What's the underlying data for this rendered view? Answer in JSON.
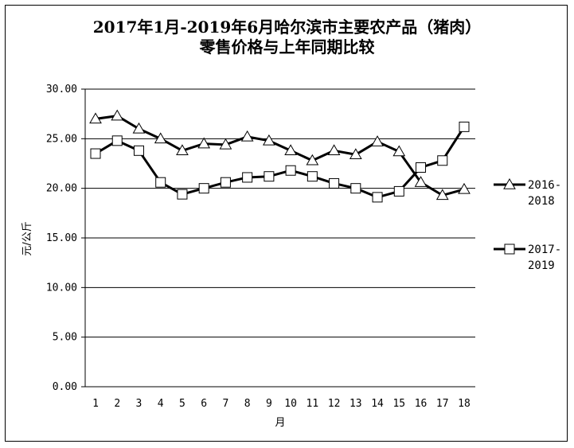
{
  "chart_data": {
    "type": "line",
    "title_line1": "2017年1月-2019年6月哈尔滨市主要农产品（猪肉）",
    "title_line2": "零售价格与上年同期比较",
    "xlabel": "月",
    "ylabel": "元/公斤",
    "categories": [
      "1",
      "2",
      "3",
      "4",
      "5",
      "6",
      "7",
      "8",
      "9",
      "10",
      "11",
      "12",
      "13",
      "14",
      "15",
      "16",
      "17",
      "18"
    ],
    "ylim": [
      0,
      30
    ],
    "yticks": [
      "0.00",
      "5.00",
      "10.00",
      "15.00",
      "20.00",
      "25.00",
      "30.00"
    ],
    "grid": true,
    "legend_position": "right",
    "series": [
      {
        "name": "2016-2018",
        "name_line1": "2016-",
        "name_line2": "2018",
        "marker": "triangle",
        "values": [
          27.0,
          27.3,
          26.0,
          25.0,
          23.8,
          24.5,
          24.4,
          25.2,
          24.8,
          23.8,
          22.8,
          23.8,
          23.4,
          24.7,
          23.7,
          20.6,
          19.3,
          19.9
        ]
      },
      {
        "name": "2017-2019",
        "name_line1": "2017-",
        "name_line2": "2019",
        "marker": "square",
        "values": [
          23.5,
          24.8,
          23.8,
          20.6,
          19.4,
          20.0,
          20.6,
          21.1,
          21.2,
          21.8,
          21.2,
          20.5,
          20.0,
          19.1,
          19.7,
          22.1,
          22.8,
          26.2
        ]
      }
    ],
    "line_color": "#000000",
    "marker_fill": "#ffffff"
  }
}
